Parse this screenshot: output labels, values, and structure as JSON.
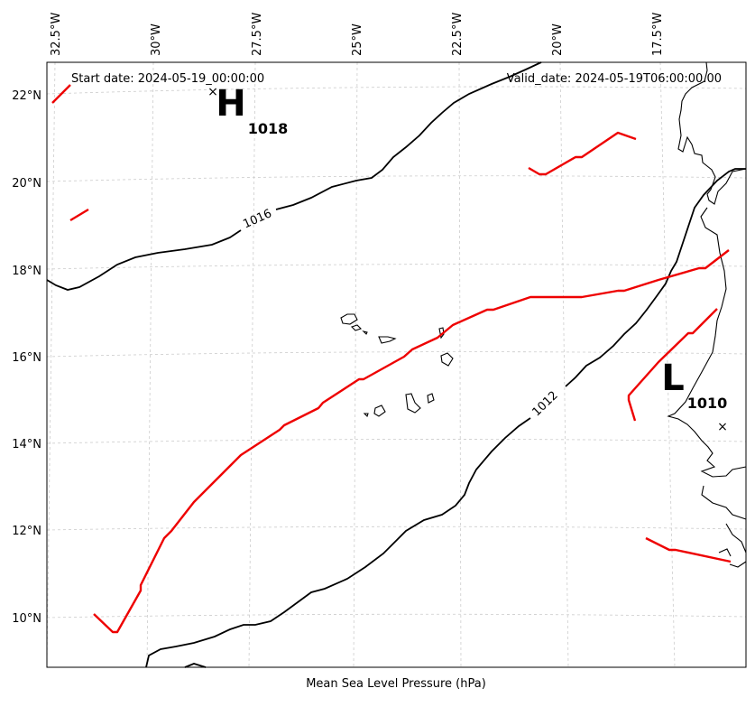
{
  "header": {
    "start_date": "Start date: 2024-05-19_00:00:00",
    "valid_date": "Valid_date: 2024-05-19T06:00:00.00"
  },
  "caption": "Mean Sea Level Pressure (hPa)",
  "longitude_labels": [
    "32.5°W",
    "30°W",
    "27.5°W",
    "25°W",
    "22.5°W",
    "20°W",
    "17.5°W"
  ],
  "latitude_labels": [
    "22°N",
    "20°N",
    "18°N",
    "16°N",
    "14°N",
    "12°N",
    "10°N"
  ],
  "pressure_centers": {
    "high": {
      "letter": "H",
      "value": "1018",
      "mark": "×"
    },
    "low": {
      "letter": "L",
      "value": "1010",
      "mark": "×"
    }
  },
  "isobars": [
    {
      "label": "1016",
      "color": "#000000"
    },
    {
      "label": "1012",
      "color": "#000000"
    }
  ],
  "colors": {
    "isobar": "#000000",
    "trough_line": "#ee0000",
    "gridline": "#cccccc",
    "coastline": "#000000"
  }
}
